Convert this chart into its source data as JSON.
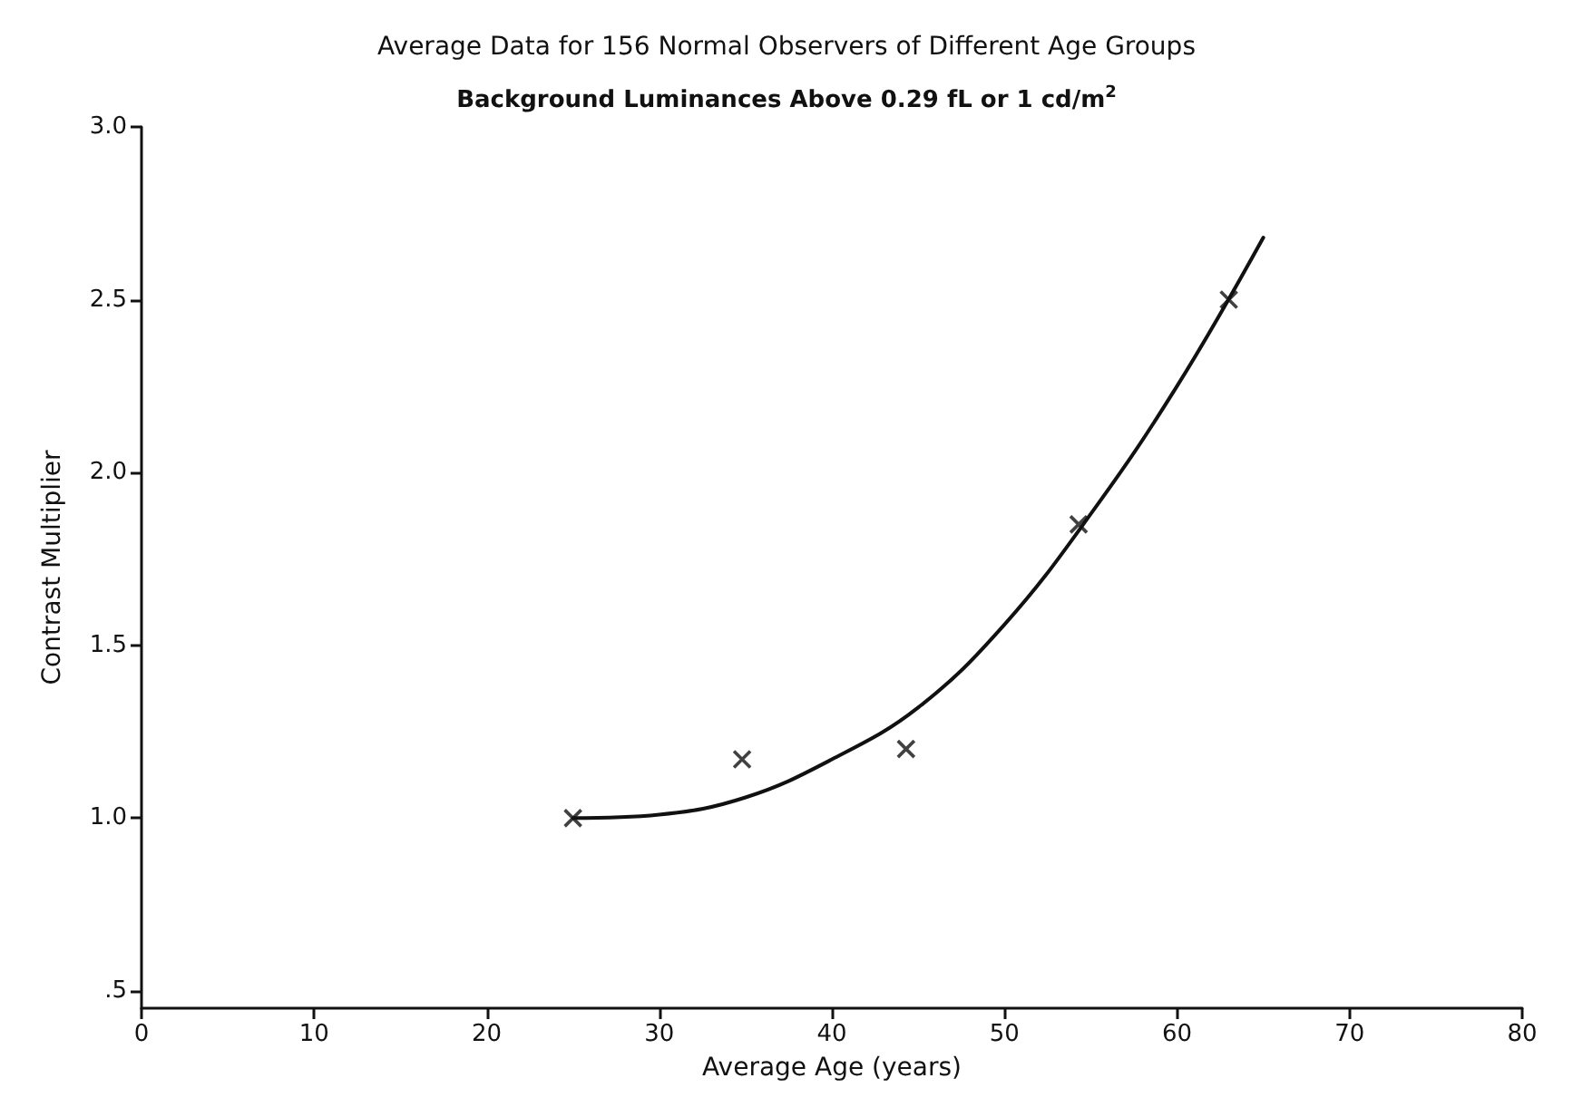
{
  "chart_data": {
    "type": "scatter",
    "title": "Average Data for 156 Normal Observers of Different Age Groups",
    "subtitle": "Background Luminances Above 0.29 fL or 1 cd/m$^{2}$",
    "xlabel": "Average Age (years)",
    "ylabel": "Contrast Multiplier",
    "xlim": [
      0,
      80
    ],
    "xticks": [
      0,
      10,
      20,
      30,
      40,
      50,
      60,
      70,
      80
    ],
    "ylim": [
      0.45,
      3.0
    ],
    "yticks": [
      {
        "value": 0.5,
        "label": ".5"
      },
      {
        "value": 1,
        "label": "1.0"
      },
      {
        "value": 1.5,
        "label": "1.5"
      },
      {
        "value": 2,
        "label": "2.0"
      },
      {
        "value": 2.5,
        "label": "2.5"
      },
      {
        "value": 3,
        "label": "3.0"
      }
    ],
    "series": [
      {
        "color": "#111111",
        "marker": "cross",
        "x": [
          25,
          34.8,
          44.3,
          54.3,
          63
        ],
        "values": [
          1.0,
          1.17,
          1.2,
          1.85,
          2.5
        ]
      },
      {
        "type": "line",
        "color": "#111111",
        "marker": "none",
        "line_style": "solid",
        "x": [
          25,
          30,
          35,
          40,
          45,
          50,
          55,
          60,
          65
        ],
        "values": [
          1.0,
          1.01,
          1.06,
          1.17,
          1.32,
          1.56,
          1.88,
          2.25,
          2.68
        ]
      }
    ],
    "grid": false
  }
}
